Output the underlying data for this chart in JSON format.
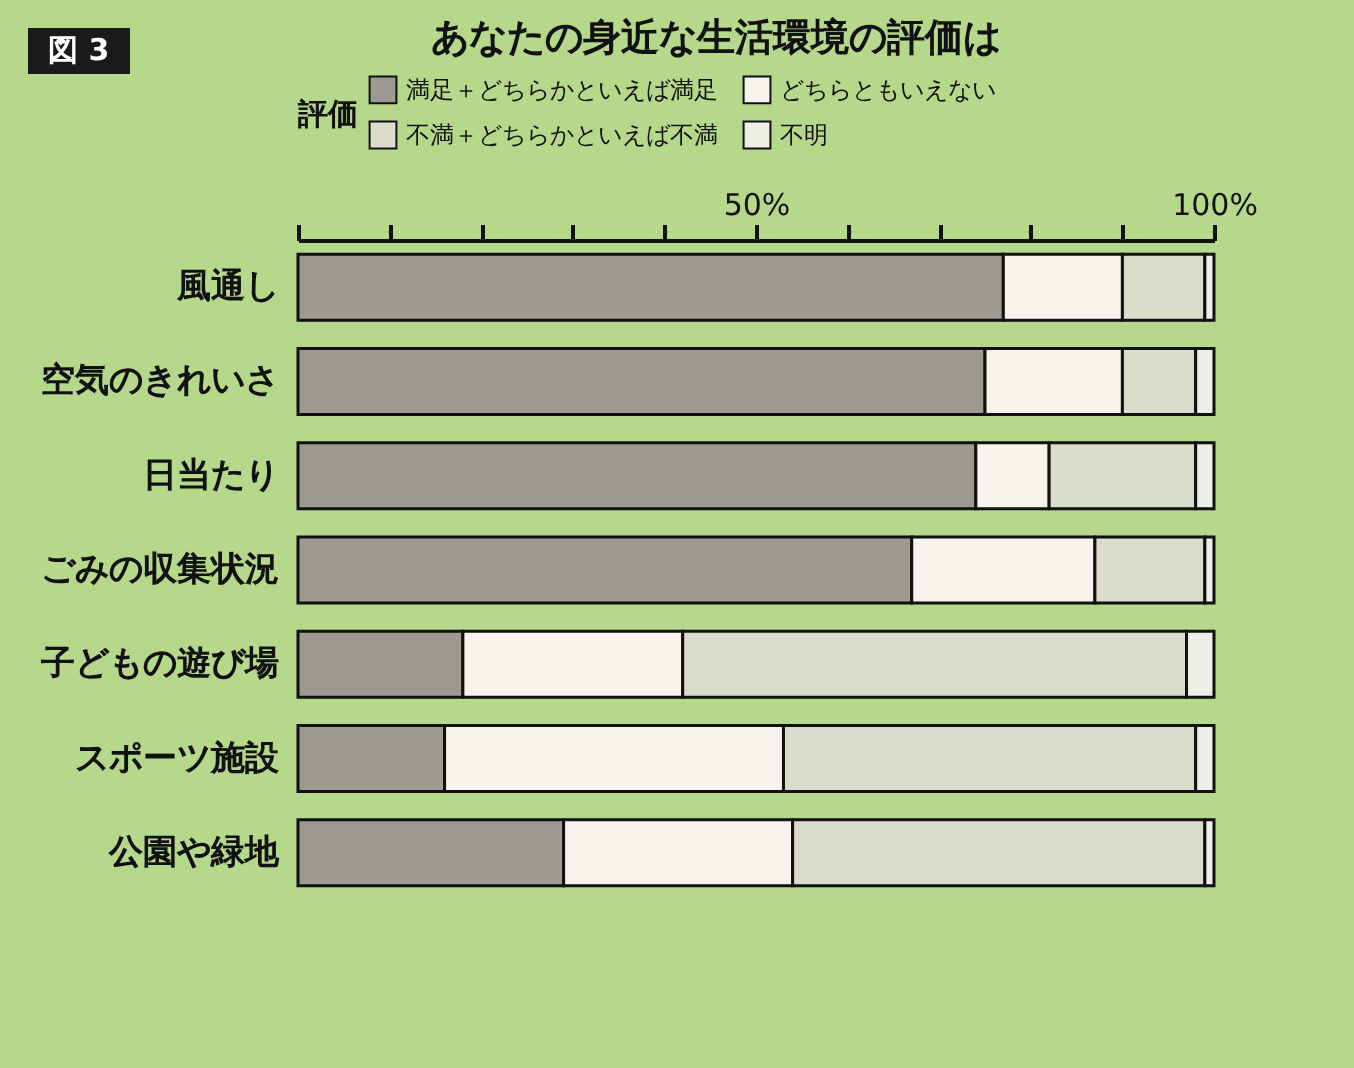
{
  "chart_data": {
    "type": "bar",
    "orientation": "horizontal",
    "stacked": true,
    "title": "あなたの身近な生活環境の評価は",
    "annotations": [
      "図 3"
    ],
    "legend_title": "評価",
    "legend": "top",
    "categories": [
      "風通し",
      "空気のきれいさ",
      "日当たり",
      "ごみの収集状況",
      "子どもの遊び場",
      "スポーツ施設",
      "公園や緑地"
    ],
    "series": [
      {
        "name": "満足＋どちらかといえば満足",
        "color": "#9e9a92",
        "values": [
          77,
          75,
          74,
          67,
          18,
          16,
          29
        ]
      },
      {
        "name": "どちらともいえない",
        "color": "#f6f4ec",
        "values": [
          13,
          15,
          8,
          20,
          24,
          37,
          25
        ]
      },
      {
        "name": "不満＋どちらかといえば不満",
        "color": "#dcdccc",
        "values": [
          9,
          8,
          16,
          12,
          55,
          45,
          45
        ]
      },
      {
        "name": "不明",
        "color": "#eeede6",
        "values": [
          1,
          2,
          2,
          1,
          3,
          2,
          1
        ]
      }
    ],
    "xlim": [
      0,
      100
    ],
    "xticks": [
      {
        "value": 0,
        "label": null
      },
      {
        "value": 10,
        "label": null
      },
      {
        "value": 20,
        "label": null
      },
      {
        "value": 30,
        "label": null
      },
      {
        "value": 40,
        "label": null
      },
      {
        "value": 50,
        "label": "50%"
      },
      {
        "value": 60,
        "label": null
      },
      {
        "value": 70,
        "label": null
      },
      {
        "value": 80,
        "label": null
      },
      {
        "value": 90,
        "label": null
      },
      {
        "value": 100,
        "label": "100%"
      }
    ],
    "grid": false
  }
}
